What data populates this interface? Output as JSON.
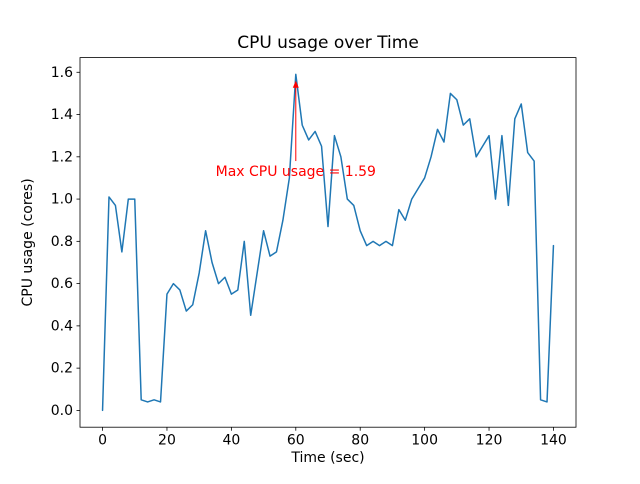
{
  "chart_data": {
    "type": "line",
    "title": "CPU usage over Time",
    "xlabel": "Time (sec)",
    "ylabel": "CPU usage (cores)",
    "line_color": "#1f77b4",
    "xlim": [
      -7,
      147
    ],
    "ylim": [
      -0.0795,
      1.6695
    ],
    "xticks": [
      0,
      20,
      40,
      60,
      80,
      100,
      120,
      140
    ],
    "yticks": [
      0.0,
      0.2,
      0.4,
      0.6,
      0.8,
      1.0,
      1.2,
      1.4,
      1.6
    ],
    "grid": false,
    "legend": "none",
    "x": [
      0,
      2,
      4,
      6,
      8,
      10,
      12,
      14,
      16,
      18,
      20,
      22,
      24,
      26,
      28,
      30,
      32,
      34,
      36,
      38,
      40,
      42,
      44,
      46,
      48,
      50,
      52,
      54,
      56,
      58,
      60,
      62,
      64,
      66,
      68,
      70,
      72,
      74,
      76,
      78,
      80,
      82,
      84,
      86,
      88,
      90,
      92,
      94,
      96,
      98,
      100,
      102,
      104,
      106,
      108,
      110,
      112,
      114,
      116,
      118,
      120,
      122,
      124,
      126,
      128,
      130,
      132,
      134,
      136,
      138,
      140
    ],
    "y": [
      0.0,
      1.01,
      0.97,
      0.75,
      1.0,
      1.0,
      0.05,
      0.04,
      0.05,
      0.04,
      0.55,
      0.6,
      0.57,
      0.47,
      0.5,
      0.65,
      0.85,
      0.7,
      0.6,
      0.63,
      0.55,
      0.57,
      0.8,
      0.45,
      0.65,
      0.85,
      0.73,
      0.75,
      0.9,
      1.1,
      1.59,
      1.35,
      1.28,
      1.32,
      1.25,
      0.87,
      1.3,
      1.2,
      1.0,
      0.97,
      0.85,
      0.78,
      0.8,
      0.78,
      0.8,
      0.78,
      0.95,
      0.9,
      1.0,
      1.05,
      1.1,
      1.2,
      1.33,
      1.27,
      1.5,
      1.47,
      1.35,
      1.38,
      1.2,
      1.25,
      1.3,
      1.0,
      1.3,
      0.97,
      1.38,
      1.45,
      1.22,
      1.18,
      0.05,
      0.04,
      0.78
    ],
    "annotation": {
      "text": "Max CPU usage = 1.59",
      "color": "#ff0000",
      "max_x": 60,
      "max_y": 1.59,
      "arrow_head_y": 1.56,
      "arrow_tail_y": 1.18,
      "text_x": 60,
      "text_y": 1.11
    }
  }
}
